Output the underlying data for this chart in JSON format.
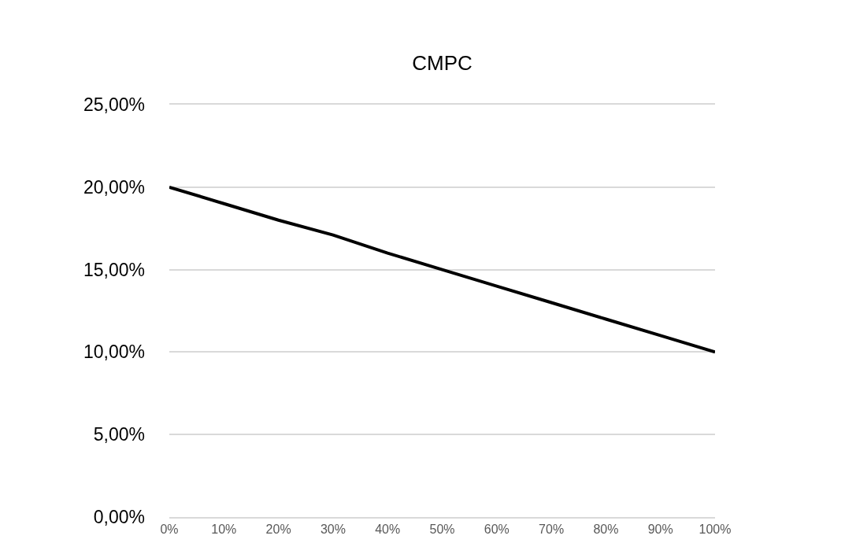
{
  "chart_data": {
    "type": "line",
    "title": "CMPC",
    "categories": [
      "0%",
      "10%",
      "20%",
      "30%",
      "40%",
      "50%",
      "60%",
      "70%",
      "80%",
      "90%",
      "100%"
    ],
    "series": [
      {
        "color": "#000000",
        "values": [
          20,
          19,
          18,
          17.1,
          16,
          15,
          14,
          13,
          12,
          11,
          10
        ]
      }
    ],
    "ylim": [
      0,
      25
    ],
    "yticks": [
      {
        "value": 0,
        "label": "0,00%"
      },
      {
        "value": 5,
        "label": "5,00%"
      },
      {
        "value": 10,
        "label": "10,00%"
      },
      {
        "value": 15,
        "label": "15,00%"
      },
      {
        "value": 20,
        "label": "20,00%"
      },
      {
        "value": 25,
        "label": "25,00%"
      }
    ],
    "grid": "y",
    "marker": "none",
    "line_style": "solid"
  }
}
